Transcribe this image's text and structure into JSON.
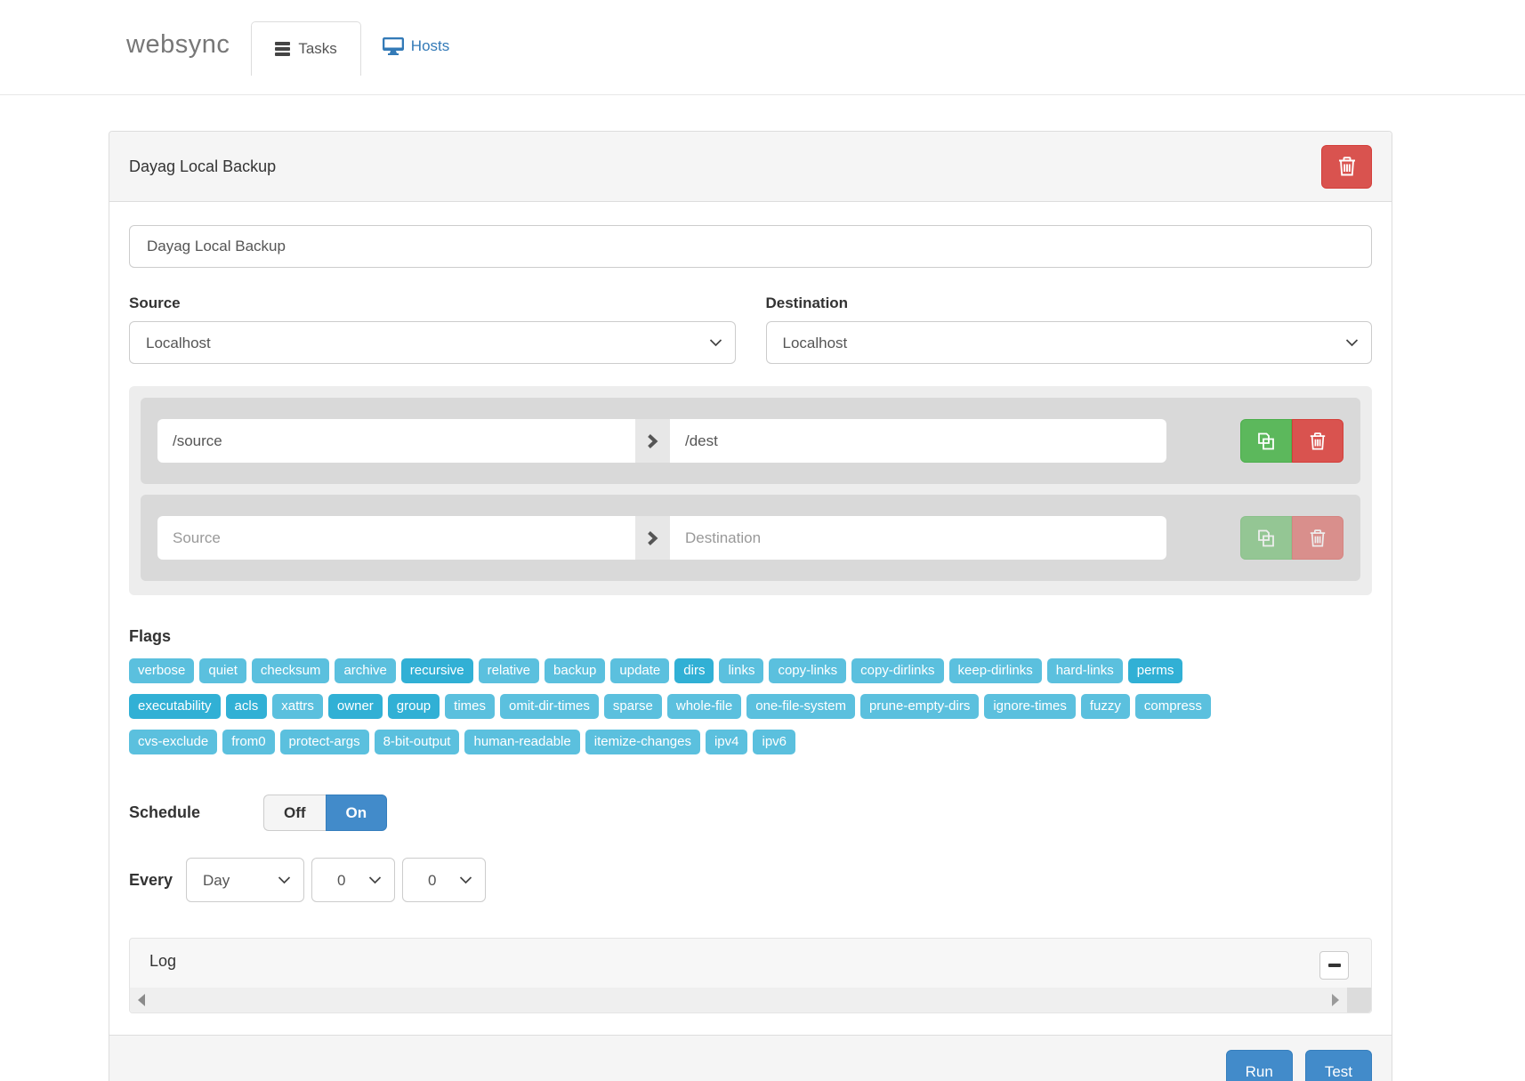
{
  "brand": "websync",
  "nav": {
    "tasks": "Tasks",
    "hosts": "Hosts"
  },
  "colors": {
    "flag_normal": "#5bc0de",
    "flag_selected": "#31b0d5",
    "danger": "#d9534f",
    "success": "#5cb85c",
    "primary": "#428bca",
    "link": "#337ab7"
  },
  "task": {
    "title": "Dayag Local Backup",
    "name_value": "Dayag Local Backup",
    "source_label": "Source",
    "destination_label": "Destination",
    "source_host": "Localhost",
    "destination_host": "Localhost",
    "paths": [
      {
        "source_value": "/source",
        "source_placeholder": "Source",
        "dest_value": "/dest",
        "dest_placeholder": "Destination"
      },
      {
        "source_value": "",
        "source_placeholder": "Source",
        "dest_value": "",
        "dest_placeholder": "Destination"
      }
    ],
    "flags_label": "Flags",
    "flag_rows": [
      [
        {
          "label": "verbose",
          "selected": false
        },
        {
          "label": "quiet",
          "selected": false
        },
        {
          "label": "checksum",
          "selected": false
        },
        {
          "label": "archive",
          "selected": false
        },
        {
          "label": "recursive",
          "selected": true
        },
        {
          "label": "relative",
          "selected": false
        },
        {
          "label": "backup",
          "selected": false
        },
        {
          "label": "update",
          "selected": false
        },
        {
          "label": "dirs",
          "selected": true
        },
        {
          "label": "links",
          "selected": false
        },
        {
          "label": "copy-links",
          "selected": false
        },
        {
          "label": "copy-dirlinks",
          "selected": false
        },
        {
          "label": "keep-dirlinks",
          "selected": false
        },
        {
          "label": "hard-links",
          "selected": false
        },
        {
          "label": "perms",
          "selected": true
        }
      ],
      [
        {
          "label": "executability",
          "selected": true
        },
        {
          "label": "acls",
          "selected": true
        },
        {
          "label": "xattrs",
          "selected": false
        },
        {
          "label": "owner",
          "selected": true
        },
        {
          "label": "group",
          "selected": true
        },
        {
          "label": "times",
          "selected": false
        },
        {
          "label": "omit-dir-times",
          "selected": false
        },
        {
          "label": "sparse",
          "selected": false
        },
        {
          "label": "whole-file",
          "selected": false
        },
        {
          "label": "one-file-system",
          "selected": false
        },
        {
          "label": "prune-empty-dirs",
          "selected": false
        },
        {
          "label": "ignore-times",
          "selected": false
        },
        {
          "label": "fuzzy",
          "selected": false
        },
        {
          "label": "compress",
          "selected": false
        }
      ],
      [
        {
          "label": "cvs-exclude",
          "selected": false
        },
        {
          "label": "from0",
          "selected": false
        },
        {
          "label": "protect-args",
          "selected": false
        },
        {
          "label": "8-bit-output",
          "selected": false
        },
        {
          "label": "human-readable",
          "selected": false
        },
        {
          "label": "itemize-changes",
          "selected": false
        },
        {
          "label": "ipv4",
          "selected": false
        },
        {
          "label": "ipv6",
          "selected": false
        }
      ]
    ],
    "schedule_label": "Schedule",
    "schedule_off": "Off",
    "schedule_on": "On",
    "schedule_state": "On",
    "every_label": "Every",
    "every_unit": "Day",
    "every_hour": "0",
    "every_minute": "0",
    "log_label": "Log",
    "run_label": "Run",
    "test_label": "Test"
  }
}
